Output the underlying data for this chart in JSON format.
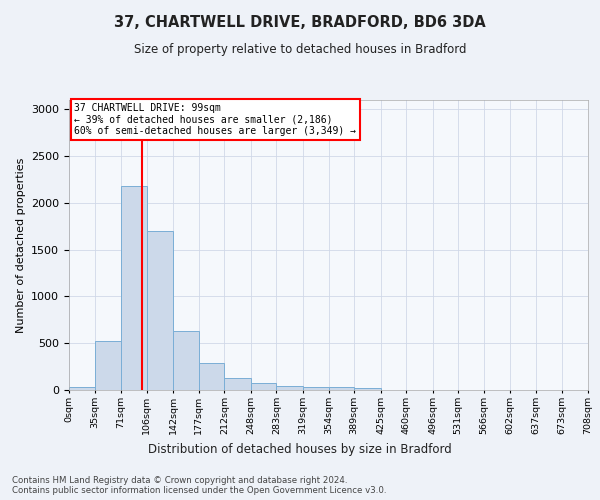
{
  "title1": "37, CHARTWELL DRIVE, BRADFORD, BD6 3DA",
  "title2": "Size of property relative to detached houses in Bradford",
  "xlabel": "Distribution of detached houses by size in Bradford",
  "ylabel": "Number of detached properties",
  "bin_edges": [
    0,
    35,
    71,
    106,
    142,
    177,
    212,
    248,
    283,
    319,
    354,
    389,
    425,
    460,
    496,
    531,
    566,
    602,
    637,
    673,
    708
  ],
  "bar_heights": [
    30,
    520,
    2180,
    1700,
    635,
    290,
    130,
    75,
    40,
    35,
    30,
    25,
    5,
    5,
    0,
    0,
    0,
    0,
    0,
    0
  ],
  "bar_color": "#ccd9ea",
  "bar_edgecolor": "#7aaed6",
  "property_line_x": 99,
  "property_line_color": "red",
  "annotation_title": "37 CHARTWELL DRIVE: 99sqm",
  "annotation_line1": "← 39% of detached houses are smaller (2,186)",
  "annotation_line2": "60% of semi-detached houses are larger (3,349) →",
  "annotation_box_color": "red",
  "ylim": [
    0,
    3100
  ],
  "yticks": [
    0,
    500,
    1000,
    1500,
    2000,
    2500,
    3000
  ],
  "tick_labels": [
    "0sqm",
    "35sqm",
    "71sqm",
    "106sqm",
    "142sqm",
    "177sqm",
    "212sqm",
    "248sqm",
    "283sqm",
    "319sqm",
    "354sqm",
    "389sqm",
    "425sqm",
    "460sqm",
    "496sqm",
    "531sqm",
    "566sqm",
    "602sqm",
    "637sqm",
    "673sqm",
    "708sqm"
  ],
  "footer1": "Contains HM Land Registry data © Crown copyright and database right 2024.",
  "footer2": "Contains public sector information licensed under the Open Government Licence v3.0.",
  "bg_color": "#eef2f8",
  "plot_bg_color": "#f5f8fc",
  "grid_color": "#d0d8e8"
}
